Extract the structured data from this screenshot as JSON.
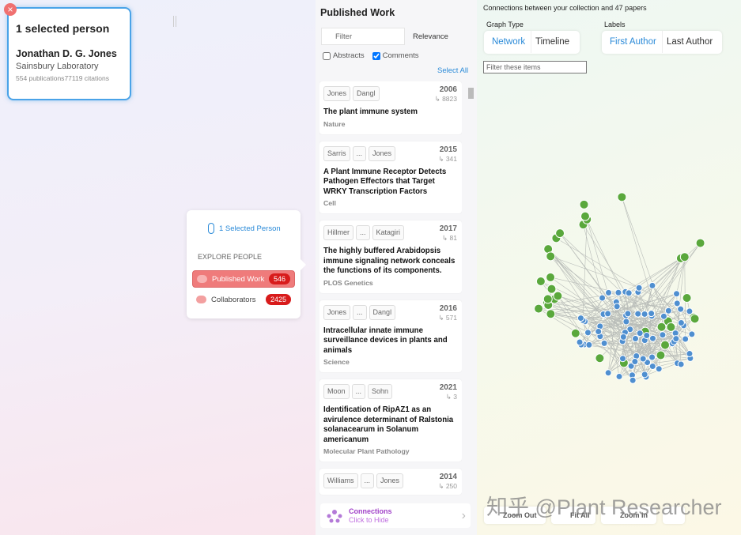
{
  "selection": {
    "title": "1 selected person",
    "name": "Jonathan D. G. Jones",
    "affiliation": "Sainsbury Laboratory",
    "publications": "554 publications",
    "citations": "77119 citations"
  },
  "explore": {
    "selected": "1 Selected Person",
    "heading": "EXPLORE PEOPLE",
    "items": [
      {
        "label": "Published Work",
        "count": "546"
      },
      {
        "label": "Collaborators",
        "count": "2425"
      }
    ]
  },
  "published_work": {
    "title": "Published Work",
    "filter_placeholder": "Filter",
    "sort": "Relevance",
    "options": [
      "Abstracts",
      "Comments"
    ],
    "select_all": "Select All",
    "papers": [
      {
        "authors": [
          "Jones",
          "Dangl"
        ],
        "year": "2006",
        "citations": "8823",
        "title": "The plant immune system",
        "journal": "Nature"
      },
      {
        "authors": [
          "Sarris",
          "...",
          "Jones"
        ],
        "year": "2015",
        "citations": "341",
        "title": "A Plant Immune Receptor Detects Pathogen Effectors that Target WRKY Transcription Factors",
        "journal": "Cell"
      },
      {
        "authors": [
          "Hillmer",
          "...",
          "Katagiri"
        ],
        "year": "2017",
        "citations": "81",
        "title": "The highly buffered Arabidopsis immune signaling network conceals the functions of its components.",
        "journal": "PLOS Genetics"
      },
      {
        "authors": [
          "Jones",
          "...",
          "Dangl"
        ],
        "year": "2016",
        "citations": "571",
        "title": "Intracellular innate immune surveillance devices in plants and animals",
        "journal": "Science"
      },
      {
        "authors": [
          "Moon",
          "...",
          "Sohn"
        ],
        "year": "2021",
        "citations": "3",
        "title": "Identification of RipAZ1 as an avirulence determinant of Ralstonia solanacearum in Solanum americanum",
        "journal": "Molecular Plant Pathology"
      },
      {
        "authors": [
          "Williams",
          "...",
          "Jones"
        ],
        "year": "2014",
        "citations": "250",
        "title": "",
        "journal": ""
      }
    ]
  },
  "connections_bar": {
    "title": "Connections",
    "subtitle": "Click to Hide"
  },
  "graph": {
    "heading": "Connections between your collection and 47 papers",
    "graph_type_label": "Graph Type",
    "graph_types": [
      "Network",
      "Timeline"
    ],
    "labels_label": "Labels",
    "label_options": [
      "First Author",
      "Last Author"
    ],
    "filter_placeholder": "Filter these items",
    "controls": [
      "Zoom Out",
      "Fit All",
      "Zoom In"
    ]
  },
  "watermark": "知乎 @Plant Researcher"
}
